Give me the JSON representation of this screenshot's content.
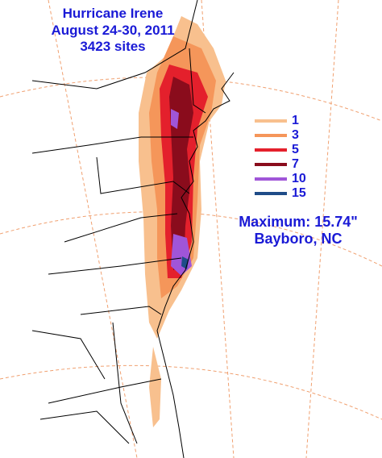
{
  "title": {
    "lines": [
      "Hurricane Irene",
      "August 24-30, 2011",
      "3423 sites"
    ]
  },
  "legend": {
    "items": [
      {
        "label": "1",
        "color": "#f8c08e"
      },
      {
        "label": "3",
        "color": "#f5965a"
      },
      {
        "label": "5",
        "color": "#e4202c"
      },
      {
        "label": "7",
        "color": "#8a0c1c"
      },
      {
        "label": "10",
        "color": "#a055d8"
      },
      {
        "label": "15",
        "color": "#1f4c88"
      }
    ]
  },
  "maximum": {
    "value": "Maximum:  15.74\"",
    "location": "Bayboro, NC"
  }
}
